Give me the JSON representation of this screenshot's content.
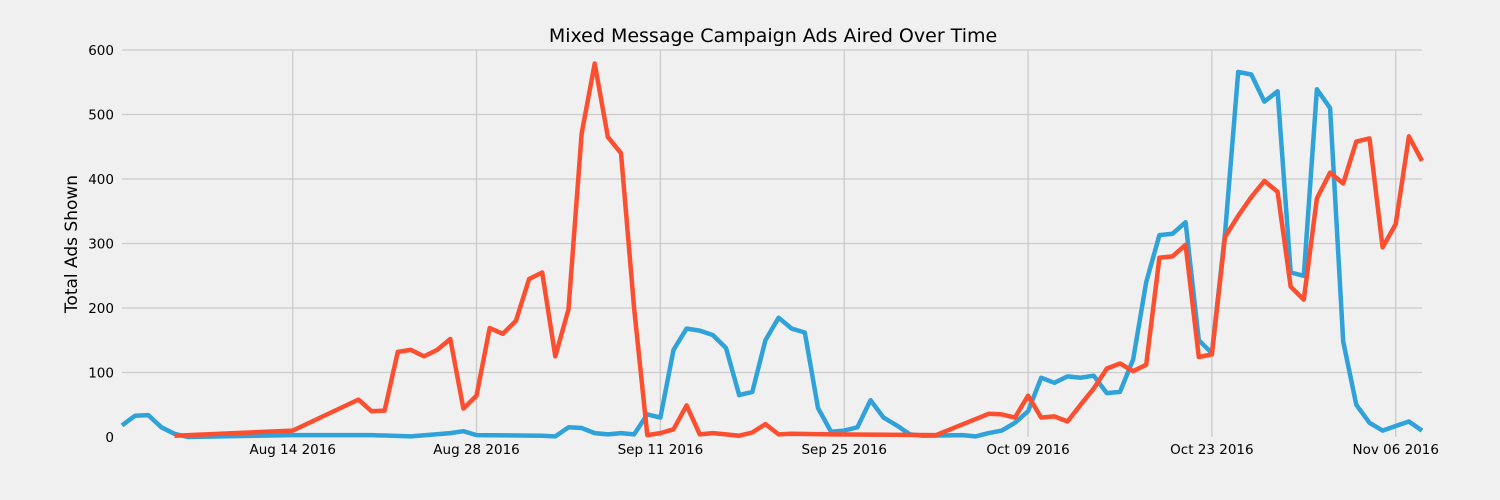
{
  "chart_data": {
    "type": "line",
    "title": "Mixed Message Campaign Ads Aired Over Time",
    "xlabel": "",
    "ylabel": "Total Ads Shown",
    "ylim": [
      0,
      600
    ],
    "xlim": [
      "2016-08-01",
      "2016-11-08"
    ],
    "yticks": [
      0,
      100,
      200,
      300,
      400,
      500,
      600
    ],
    "xticks": [
      {
        "date": "2016-08-14",
        "label": "Aug 14 2016"
      },
      {
        "date": "2016-08-28",
        "label": "Aug 28 2016"
      },
      {
        "date": "2016-09-11",
        "label": "Sep 11 2016"
      },
      {
        "date": "2016-09-25",
        "label": "Sep 25 2016"
      },
      {
        "date": "2016-10-09",
        "label": "Oct 09 2016"
      },
      {
        "date": "2016-10-23",
        "label": "Oct 23 2016"
      },
      {
        "date": "2016-11-06",
        "label": "Nov 06 2016"
      }
    ],
    "grid": true,
    "series": [
      {
        "color": "#30a2da",
        "points": [
          [
            "2016-08-01",
            18
          ],
          [
            "2016-08-02",
            33
          ],
          [
            "2016-08-03",
            34
          ],
          [
            "2016-08-04",
            15
          ],
          [
            "2016-08-05",
            5
          ],
          [
            "2016-08-06",
            0
          ],
          [
            "2016-08-14",
            3
          ],
          [
            "2016-08-20",
            3
          ],
          [
            "2016-08-23",
            1
          ],
          [
            "2016-08-26",
            6
          ],
          [
            "2016-08-27",
            9
          ],
          [
            "2016-08-28",
            3
          ],
          [
            "2016-09-02",
            2
          ],
          [
            "2016-09-03",
            1
          ],
          [
            "2016-09-04",
            15
          ],
          [
            "2016-09-05",
            14
          ],
          [
            "2016-09-06",
            6
          ],
          [
            "2016-09-07",
            4
          ],
          [
            "2016-09-08",
            6
          ],
          [
            "2016-09-09",
            4
          ],
          [
            "2016-09-10",
            35
          ],
          [
            "2016-09-11",
            30
          ],
          [
            "2016-09-12",
            135
          ],
          [
            "2016-09-13",
            168
          ],
          [
            "2016-09-14",
            165
          ],
          [
            "2016-09-15",
            158
          ],
          [
            "2016-09-16",
            138
          ],
          [
            "2016-09-17",
            65
          ],
          [
            "2016-09-18",
            70
          ],
          [
            "2016-09-19",
            150
          ],
          [
            "2016-09-20",
            185
          ],
          [
            "2016-09-21",
            168
          ],
          [
            "2016-09-22",
            162
          ],
          [
            "2016-09-23",
            45
          ],
          [
            "2016-09-24",
            8
          ],
          [
            "2016-09-25",
            10
          ],
          [
            "2016-09-26",
            15
          ],
          [
            "2016-09-27",
            57
          ],
          [
            "2016-09-28",
            30
          ],
          [
            "2016-09-29",
            18
          ],
          [
            "2016-09-30",
            4
          ],
          [
            "2016-10-01",
            2
          ],
          [
            "2016-10-04",
            3
          ],
          [
            "2016-10-05",
            1
          ],
          [
            "2016-10-06",
            6
          ],
          [
            "2016-10-07",
            10
          ],
          [
            "2016-10-08",
            22
          ],
          [
            "2016-10-09",
            40
          ],
          [
            "2016-10-10",
            92
          ],
          [
            "2016-10-11",
            84
          ],
          [
            "2016-10-12",
            94
          ],
          [
            "2016-10-13",
            92
          ],
          [
            "2016-10-14",
            95
          ],
          [
            "2016-10-15",
            68
          ],
          [
            "2016-10-16",
            70
          ],
          [
            "2016-10-17",
            120
          ],
          [
            "2016-10-18",
            240
          ],
          [
            "2016-10-19",
            313
          ],
          [
            "2016-10-20",
            315
          ],
          [
            "2016-10-21",
            333
          ],
          [
            "2016-10-22",
            150
          ],
          [
            "2016-10-23",
            130
          ],
          [
            "2016-10-24",
            315
          ],
          [
            "2016-10-25",
            566
          ],
          [
            "2016-10-26",
            562
          ],
          [
            "2016-10-27",
            520
          ],
          [
            "2016-10-28",
            536
          ],
          [
            "2016-10-29",
            255
          ],
          [
            "2016-10-30",
            250
          ],
          [
            "2016-10-31",
            539
          ],
          [
            "2016-11-01",
            510
          ],
          [
            "2016-11-02",
            148
          ],
          [
            "2016-11-03",
            50
          ],
          [
            "2016-11-04",
            22
          ],
          [
            "2016-11-05",
            10
          ],
          [
            "2016-11-06",
            17
          ],
          [
            "2016-11-07",
            24
          ],
          [
            "2016-11-08",
            10
          ]
        ]
      },
      {
        "color": "#fc4f30",
        "points": [
          [
            "2016-08-05",
            2
          ],
          [
            "2016-08-14",
            10
          ],
          [
            "2016-08-19",
            58
          ],
          [
            "2016-08-20",
            40
          ],
          [
            "2016-08-21",
            41
          ],
          [
            "2016-08-22",
            132
          ],
          [
            "2016-08-23",
            135
          ],
          [
            "2016-08-24",
            125
          ],
          [
            "2016-08-25",
            135
          ],
          [
            "2016-08-26",
            152
          ],
          [
            "2016-08-27",
            44
          ],
          [
            "2016-08-28",
            64
          ],
          [
            "2016-08-29",
            169
          ],
          [
            "2016-08-30",
            160
          ],
          [
            "2016-08-31",
            180
          ],
          [
            "2016-09-01",
            245
          ],
          [
            "2016-09-02",
            255
          ],
          [
            "2016-09-03",
            125
          ],
          [
            "2016-09-04",
            198
          ],
          [
            "2016-09-05",
            470
          ],
          [
            "2016-09-06",
            579
          ],
          [
            "2016-09-07",
            465
          ],
          [
            "2016-09-08",
            440
          ],
          [
            "2016-09-09",
            200
          ],
          [
            "2016-09-10",
            3
          ],
          [
            "2016-09-11",
            6
          ],
          [
            "2016-09-12",
            12
          ],
          [
            "2016-09-13",
            49
          ],
          [
            "2016-09-14",
            4
          ],
          [
            "2016-09-15",
            6
          ],
          [
            "2016-09-16",
            4
          ],
          [
            "2016-09-17",
            2
          ],
          [
            "2016-09-18",
            7
          ],
          [
            "2016-09-19",
            20
          ],
          [
            "2016-09-20",
            4
          ],
          [
            "2016-09-21",
            5
          ],
          [
            "2016-09-24",
            4
          ],
          [
            "2016-10-02",
            3
          ],
          [
            "2016-10-06",
            36
          ],
          [
            "2016-10-07",
            35
          ],
          [
            "2016-10-08",
            30
          ],
          [
            "2016-10-09",
            64
          ],
          [
            "2016-10-10",
            30
          ],
          [
            "2016-10-11",
            32
          ],
          [
            "2016-10-12",
            24
          ],
          [
            "2016-10-13",
            50
          ],
          [
            "2016-10-14",
            75
          ],
          [
            "2016-10-15",
            106
          ],
          [
            "2016-10-16",
            114
          ],
          [
            "2016-10-17",
            102
          ],
          [
            "2016-10-18",
            112
          ],
          [
            "2016-10-19",
            278
          ],
          [
            "2016-10-20",
            280
          ],
          [
            "2016-10-21",
            298
          ],
          [
            "2016-10-22",
            124
          ],
          [
            "2016-10-23",
            128
          ],
          [
            "2016-10-24",
            310
          ],
          [
            "2016-10-25",
            343
          ],
          [
            "2016-10-26",
            372
          ],
          [
            "2016-10-27",
            397
          ],
          [
            "2016-10-28",
            380
          ],
          [
            "2016-10-29",
            233
          ],
          [
            "2016-10-30",
            213
          ],
          [
            "2016-10-31",
            370
          ],
          [
            "2016-11-01",
            410
          ],
          [
            "2016-11-02",
            393
          ],
          [
            "2016-11-03",
            458
          ],
          [
            "2016-11-04",
            463
          ],
          [
            "2016-11-05",
            294
          ],
          [
            "2016-11-06",
            330
          ],
          [
            "2016-11-07",
            466
          ],
          [
            "2016-11-08",
            428
          ]
        ]
      }
    ]
  }
}
